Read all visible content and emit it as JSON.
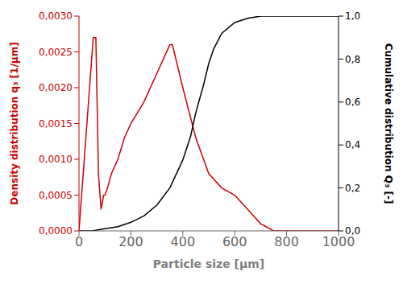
{
  "chart_data": {
    "type": "line",
    "xlabel": "Particle size [μm]",
    "ylabel": "Density distribution q₃ [1/μm]",
    "y2label": "Cumulative distribution Q₃ [-]",
    "series": [
      {
        "color": "#cc0000",
        "x": [
          0,
          55,
          65,
          75,
          85,
          95,
          100,
          110,
          125,
          150,
          175,
          200,
          250,
          300,
          350,
          360,
          400,
          450,
          500,
          550,
          600,
          650,
          700,
          750,
          800,
          900,
          1000
        ],
        "values": [
          0.0,
          0.0027,
          0.0027,
          0.0008,
          0.0003,
          0.0005,
          0.0005,
          0.0006,
          0.0008,
          0.001,
          0.0013,
          0.0015,
          0.0018,
          0.0022,
          0.0026,
          0.0026,
          0.002,
          0.0013,
          0.0008,
          0.0006,
          0.0005,
          0.0003,
          0.0001,
          0.0,
          0.0,
          0.0,
          0.0
        ]
      },
      {
        "color": "#000000",
        "axis": "y2",
        "x": [
          0,
          50,
          100,
          150,
          200,
          250,
          300,
          350,
          400,
          430,
          450,
          480,
          500,
          520,
          550,
          600,
          650,
          700,
          750,
          800,
          1000
        ],
        "values": [
          0.0,
          0.0,
          0.01,
          0.02,
          0.04,
          0.07,
          0.12,
          0.2,
          0.33,
          0.44,
          0.55,
          0.68,
          0.78,
          0.85,
          0.92,
          0.97,
          0.99,
          1.0,
          1.0,
          1.0,
          1.0
        ]
      }
    ],
    "xlim": [
      0,
      1000
    ],
    "xticks": [
      0,
      200,
      400,
      600,
      800,
      1000
    ],
    "ylim": [
      0.0,
      0.003
    ],
    "yticks": [
      {
        "value": 0.0,
        "label": "0,0000"
      },
      {
        "value": 0.0005,
        "label": "0,0005"
      },
      {
        "value": 0.001,
        "label": "0,0010"
      },
      {
        "value": 0.0015,
        "label": "0,0015"
      },
      {
        "value": 0.002,
        "label": "0,0020"
      },
      {
        "value": 0.0025,
        "label": "0,0025"
      },
      {
        "value": 0.003,
        "label": "0,0030"
      }
    ],
    "y2lim": [
      0.0,
      1.0
    ],
    "y2ticks": [
      {
        "value": 0.0,
        "label": "0,0"
      },
      {
        "value": 0.2,
        "label": "0,2"
      },
      {
        "value": 0.4,
        "label": "0,4"
      },
      {
        "value": 0.6,
        "label": "0,6"
      },
      {
        "value": 0.8,
        "label": "0,8"
      },
      {
        "value": 1.0,
        "label": "1,0"
      }
    ],
    "grid": false
  }
}
